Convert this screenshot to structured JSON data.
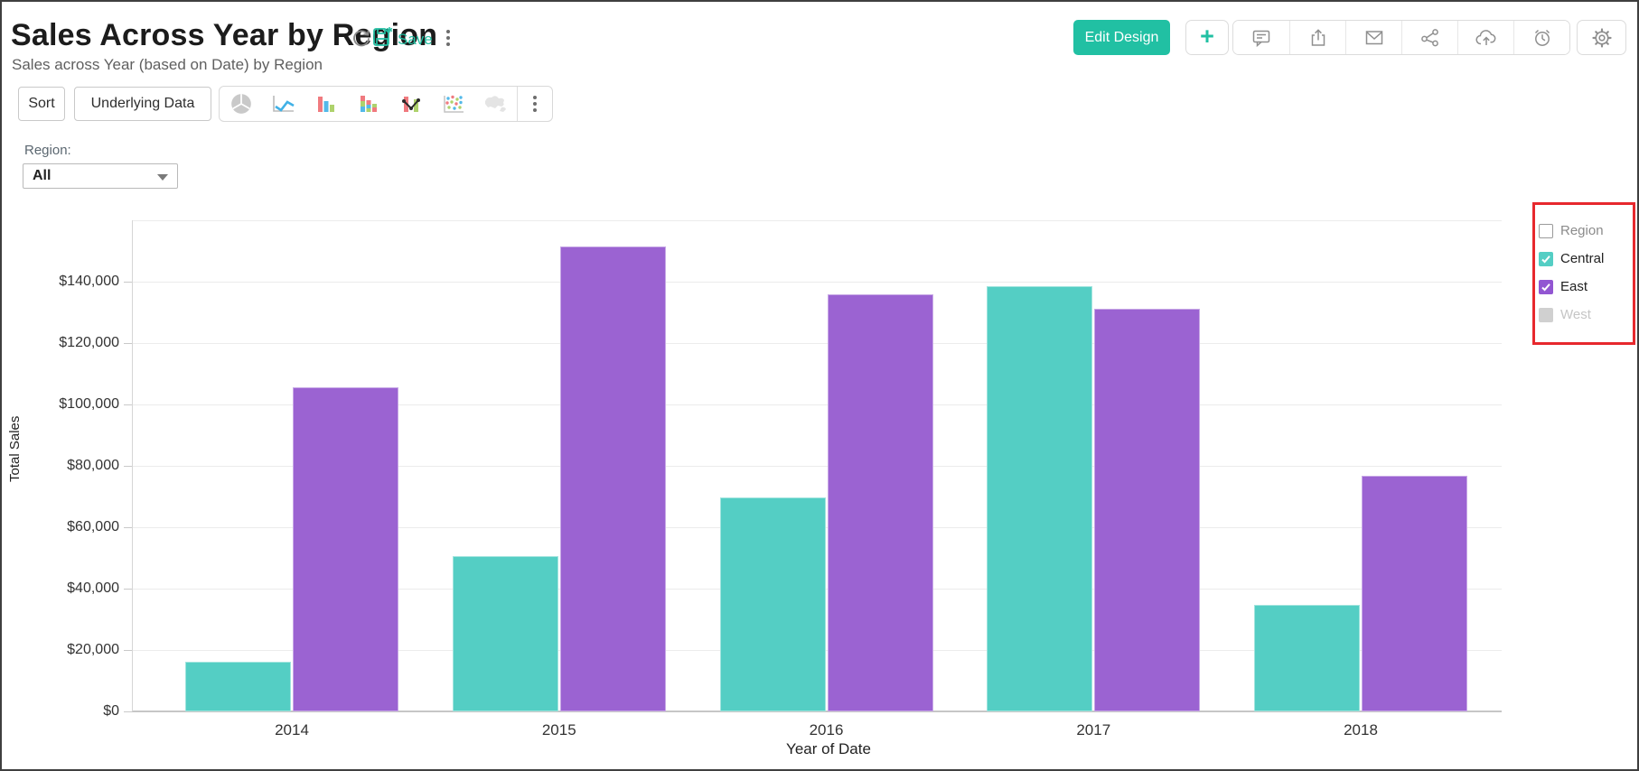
{
  "header": {
    "title": "Sales Across Year by Region",
    "subtitle": "Sales across Year (based on Date) by Region",
    "save_label": "Save",
    "actions": {
      "edit_design": "Edit Design",
      "plus": "+"
    },
    "action_icons": [
      "refresh-icon",
      "save-icon",
      "kebab-menu-icon",
      "comment-icon",
      "export-icon",
      "email-icon",
      "share-icon",
      "cloud-upload-icon",
      "alarm-icon",
      "settings-gear-icon"
    ]
  },
  "toolbar": {
    "sort": "Sort",
    "underlying_data": "Underlying Data",
    "chart_type_icons": [
      "pie-chart-icon",
      "line-chart-icon",
      "bar-chart-icon",
      "stacked-bar-chart-icon",
      "combo-chart-icon",
      "scatter-chart-icon",
      "map-chart-icon",
      "kebab-menu-icon"
    ]
  },
  "filter": {
    "label": "Region:",
    "value": "All"
  },
  "legend": {
    "title": "Region",
    "title_color": "#8b8b8b",
    "items": [
      {
        "label": "Central",
        "checked": true,
        "color": "#54cec4",
        "label_color": "#222222"
      },
      {
        "label": "East",
        "checked": true,
        "color": "#9256d2",
        "label_color": "#222222"
      },
      {
        "label": "West",
        "checked": false,
        "color": "#d0d0d0",
        "label_color": "#c5c5c5"
      }
    ]
  },
  "chart_data": {
    "type": "bar",
    "title": "Sales Across Year by Region",
    "categories": [
      "2014",
      "2015",
      "2016",
      "2017",
      "2018"
    ],
    "series": [
      {
        "name": "Central",
        "color": "#54cec4",
        "values": [
          16300,
          50600,
          69600,
          138600,
          34800
        ]
      },
      {
        "name": "East",
        "color": "#9b63d2",
        "values": [
          105500,
          151500,
          135900,
          131200,
          76800
        ]
      }
    ],
    "xlabel": "Year of Date",
    "ylabel": "Total Sales",
    "ylim": [
      0,
      160000
    ],
    "ytick_step": 20000,
    "ytick_labels": [
      "$0",
      "$20,000",
      "$40,000",
      "$60,000",
      "$80,000",
      "$100,000",
      "$120,000",
      "$140,000"
    ],
    "grid": true,
    "legend_position": "top-right"
  },
  "colors": {
    "accent_teal": "#21c0a3",
    "bar_central": "#54cec4",
    "bar_east": "#9b63d2",
    "annotation_red": "#e7282d",
    "legend_disabled": "#d0d0d0"
  }
}
